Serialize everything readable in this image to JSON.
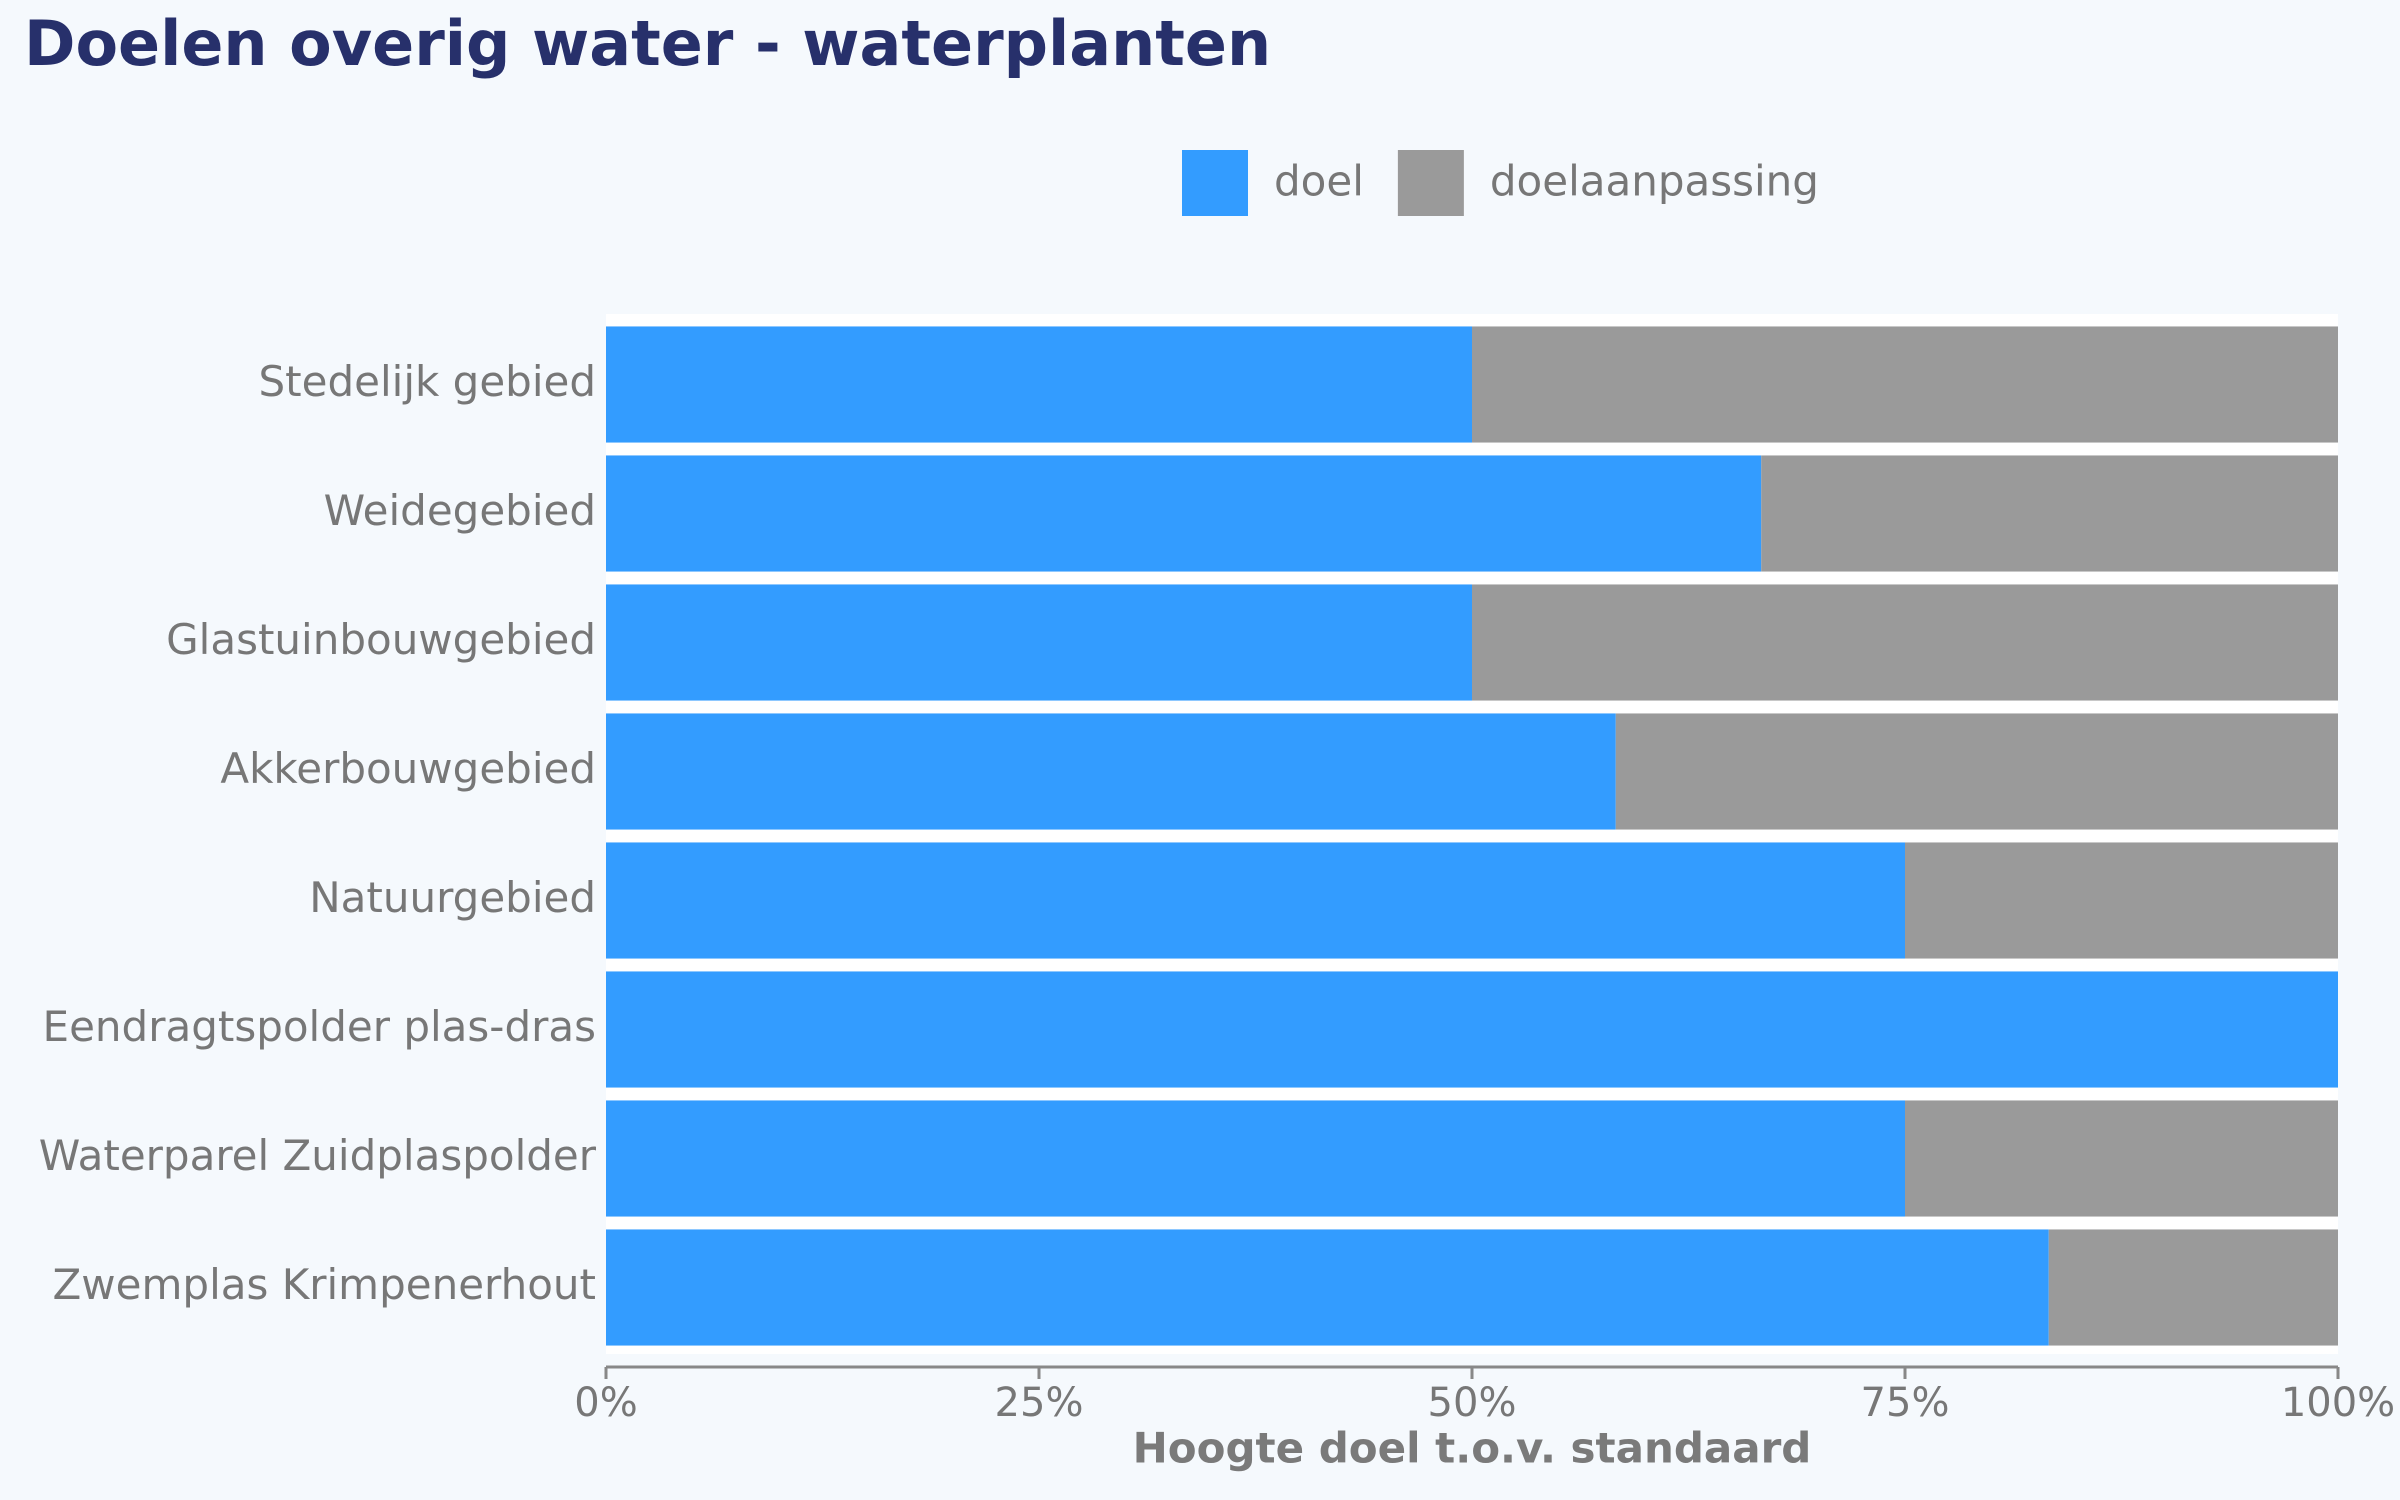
{
  "chart_data": {
    "type": "stacked-bar-horizontal",
    "title": "Doelen overig water - waterplanten",
    "x_label": "Hoogte doel t.o.v. standaard",
    "categories": [
      "Stedelijk gebied",
      "Weidegebied",
      "Glastuinbouwgebied",
      "Akkerbouwgebied",
      "Natuurgebied",
      "Eendragtspolder plas-dras",
      "Waterparel Zuidplaspolder",
      "Zwemplas Krimpenerhout"
    ],
    "series": [
      {
        "name": "doel",
        "color": "#339cff",
        "values": [
          50,
          66.7,
          50,
          58.3,
          75,
          100,
          75,
          83.3
        ]
      },
      {
        "name": "doelaanpassing",
        "color": "#9a9a9a",
        "values": [
          50,
          33.3,
          50,
          41.7,
          25,
          0,
          25,
          16.7
        ]
      }
    ],
    "xlim": [
      0,
      100
    ],
    "xticks": [
      {
        "value": 0,
        "label": "0%"
      },
      {
        "value": 25,
        "label": "25%"
      },
      {
        "value": 50,
        "label": "50%"
      },
      {
        "value": 75,
        "label": "75%"
      },
      {
        "value": 100,
        "label": "100%"
      }
    ],
    "legend": "top"
  }
}
